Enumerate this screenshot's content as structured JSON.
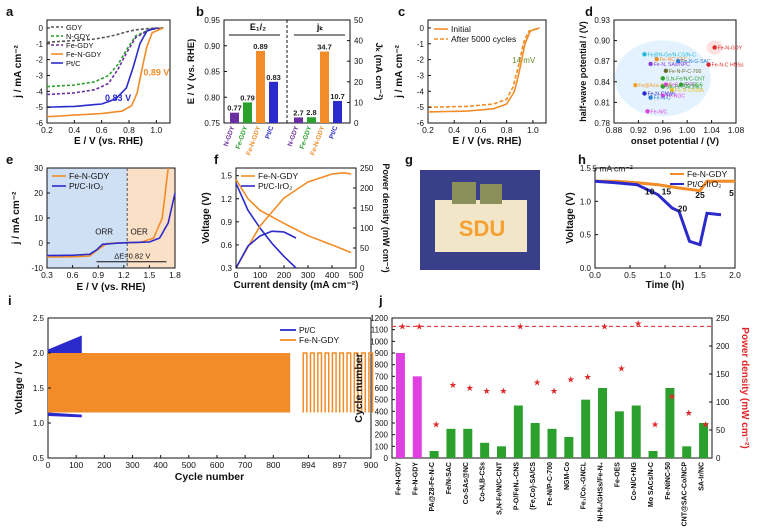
{
  "colors": {
    "gdy": "#555555",
    "ngdy": "#2ca02c",
    "fegdy": "#6a2fa0",
    "fengdy": "#f28c28",
    "ptc": "#2b2bcc",
    "magenta": "#e040e0",
    "red": "#e0282a",
    "blue": "#2b2bcc",
    "orange": "#f28c28"
  },
  "chart_data": [
    {
      "panel": "a",
      "type": "line",
      "xlabel": "E / V (vs. RHE)",
      "ylabel": "j / mA cm⁻²",
      "xlim": [
        0.2,
        1.1
      ],
      "ylim": [
        -6,
        0.5
      ],
      "xticks": [
        "0.2",
        "0.4",
        "0.6",
        "0.8",
        "1.0"
      ],
      "yticks": [
        "0",
        "-1",
        "-2",
        "-3",
        "-4",
        "-5",
        "-6"
      ],
      "legend": [
        "GDY",
        "N-GDY",
        "Fe-GDY",
        "Fe-N-GDY",
        "Pt/C"
      ],
      "annotations": [
        "0.89 V",
        "0.83 V"
      ],
      "series": [
        {
          "name": "GDY",
          "x": [
            0.2,
            0.4,
            0.55,
            0.65,
            0.72,
            0.78,
            0.85,
            0.95,
            1.05
          ],
          "y": [
            -0.9,
            -0.8,
            -0.7,
            -0.55,
            -0.4,
            -0.25,
            -0.12,
            -0.03,
            0
          ]
        },
        {
          "name": "N-GDY",
          "x": [
            0.2,
            0.4,
            0.55,
            0.65,
            0.72,
            0.78,
            0.85,
            0.95,
            1.05
          ],
          "y": [
            -3.7,
            -3.6,
            -3.4,
            -3.0,
            -2.3,
            -1.4,
            -0.5,
            -0.1,
            0
          ]
        },
        {
          "name": "Fe-GDY",
          "x": [
            0.2,
            0.4,
            0.55,
            0.65,
            0.72,
            0.78,
            0.85,
            0.95,
            1.05
          ],
          "y": [
            -4.2,
            -4.1,
            -3.9,
            -3.5,
            -2.6,
            -1.6,
            -0.6,
            -0.1,
            0
          ]
        },
        {
          "name": "Fe-N-GDY",
          "x": [
            0.2,
            0.4,
            0.6,
            0.75,
            0.82,
            0.86,
            0.89,
            0.93,
            0.97,
            1.05
          ],
          "y": [
            -5.6,
            -5.5,
            -5.4,
            -5.25,
            -4.9,
            -4.1,
            -2.8,
            -1.2,
            -0.3,
            0
          ]
        },
        {
          "name": "Pt/C",
          "x": [
            0.2,
            0.4,
            0.6,
            0.7,
            0.78,
            0.83,
            0.88,
            0.93,
            1.0
          ],
          "y": [
            -5.0,
            -4.95,
            -4.8,
            -4.5,
            -3.8,
            -2.5,
            -1.0,
            -0.2,
            0
          ]
        }
      ]
    },
    {
      "panel": "b",
      "type": "bar",
      "ylabel": "E / V (vs. RHE)",
      "y2label": "Jₖ (mA cm⁻²)",
      "ylim": [
        0.75,
        0.95
      ],
      "y2lim": [
        0,
        50
      ],
      "yticks": [
        "0.75",
        "0.80",
        "0.85",
        "0.90",
        "0.95"
      ],
      "y2ticks": [
        "0",
        "10",
        "20",
        "30",
        "40",
        "50"
      ],
      "group_labels": [
        "E₁/₂",
        "jₖ"
      ],
      "categories": [
        "N-GDY",
        "Fe-GDY",
        "Fe-N-GDY",
        "Pt/C"
      ],
      "series": [
        {
          "name": "E₁/₂",
          "values": [
            0.77,
            0.79,
            0.89,
            0.83
          ],
          "labels": [
            "0.77",
            "0.79",
            "0.89",
            "0.83"
          ]
        },
        {
          "name": "jₖ",
          "values": [
            2.7,
            2.8,
            34.7,
            10.7
          ],
          "labels": [
            "2.7",
            "2.8",
            "34.7",
            "10.7"
          ]
        }
      ]
    },
    {
      "panel": "c",
      "type": "line",
      "xlabel": "E / V (vs. RHE)",
      "ylabel": "j / mA cm⁻²",
      "xlim": [
        0.2,
        1.1
      ],
      "ylim": [
        -6,
        0.5
      ],
      "xticks": [
        "0.2",
        "0.4",
        "0.6",
        "0.8",
        "1.0"
      ],
      "yticks": [
        "0",
        "-1",
        "-2",
        "-3",
        "-4",
        "-5",
        "-6"
      ],
      "legend": [
        "Initial",
        "After 5000 cycles"
      ],
      "annotations": [
        "14 mV"
      ],
      "series": [
        {
          "name": "Initial",
          "x": [
            0.2,
            0.5,
            0.7,
            0.8,
            0.86,
            0.9,
            0.94,
            0.98,
            1.05
          ],
          "y": [
            -5.3,
            -5.25,
            -5.1,
            -4.8,
            -4.0,
            -2.6,
            -1.0,
            -0.2,
            0
          ]
        },
        {
          "name": "After 5000 cycles",
          "x": [
            0.2,
            0.5,
            0.7,
            0.8,
            0.85,
            0.89,
            0.93,
            0.97,
            1.05
          ],
          "y": [
            -5.0,
            -4.95,
            -4.8,
            -4.5,
            -3.7,
            -2.4,
            -0.9,
            -0.2,
            0
          ]
        }
      ]
    },
    {
      "panel": "d",
      "type": "scatter",
      "xlabel": "onset potential / (V)",
      "ylabel": "half-wave potential / (V)",
      "xlim": [
        0.88,
        1.08
      ],
      "ylim": [
        0.78,
        0.93
      ],
      "xticks": [
        "0.88",
        "0.92",
        "0.96",
        "1.00",
        "1.04",
        "1.08"
      ],
      "yticks": [
        "0.78",
        "0.81",
        "0.84",
        "0.87",
        "0.90",
        "0.93"
      ],
      "points": [
        {
          "label": "Fe-N-GDY",
          "x": 1.045,
          "y": 0.89,
          "color": "#e0282a"
        },
        {
          "label": "Fe@N-Ge/N-CS/N-C",
          "x": 0.93,
          "y": 0.88,
          "color": "#1fb8d8"
        },
        {
          "label": "Fe-NC SAC",
          "x": 0.95,
          "y": 0.873,
          "color": "#f28c28"
        },
        {
          "label": "Fe-N-G-SAC",
          "x": 0.985,
          "y": 0.87,
          "color": "#2b7fd6"
        },
        {
          "label": "Fe-N-C HNSs",
          "x": 1.035,
          "y": 0.865,
          "color": "#e0282a"
        },
        {
          "label": "Fe-N, SAs/NPC",
          "x": 0.94,
          "y": 0.866,
          "color": "#8a3fd6"
        },
        {
          "label": "Fe-N-P-C-700",
          "x": 0.965,
          "y": 0.856,
          "color": "#6a6a2a"
        },
        {
          "label": "S,N-Fe/N/C-CNT",
          "x": 0.96,
          "y": 0.845,
          "color": "#2ca02c"
        },
        {
          "label": "Fe@Aza-PON",
          "x": 0.915,
          "y": 0.835,
          "color": "#f2a02a"
        },
        {
          "label": "FeSAs/PTF",
          "x": 0.965,
          "y": 0.836,
          "color": "#e040e0"
        },
        {
          "label": "SA-Fe-SAC/NC",
          "x": 0.96,
          "y": 0.833,
          "color": "#2ca02c"
        },
        {
          "label": "Fe-OES",
          "x": 0.99,
          "y": 0.836,
          "color": "#2ca02c"
        },
        {
          "label": "Fe,N-C/NSA",
          "x": 0.975,
          "y": 0.828,
          "color": "#e0c02a"
        },
        {
          "label": "Fe-N-CNWs",
          "x": 0.93,
          "y": 0.823,
          "color": "#2b2bcc"
        },
        {
          "label": "Fe-NGC",
          "x": 0.96,
          "y": 0.82,
          "color": "#e040e0"
        },
        {
          "label": "Fe-N-C",
          "x": 0.94,
          "y": 0.817,
          "color": "#2b7fd6"
        },
        {
          "label": "Fe-N/C",
          "x": 0.935,
          "y": 0.797,
          "color": "#e040e0"
        }
      ]
    },
    {
      "panel": "e",
      "type": "line",
      "xlabel": "E / V (vs. RHE)",
      "ylabel": "j / mA cm⁻²",
      "xlim": [
        0.3,
        1.8
      ],
      "ylim": [
        -10,
        30
      ],
      "xticks": [
        "0.3",
        "0.6",
        "0.9",
        "1.2",
        "1.5",
        "1.8"
      ],
      "yticks": [
        "-10",
        "0",
        "10",
        "20",
        "30"
      ],
      "legend": [
        "Fe-N-GDY",
        "Pt/C-IrO₂"
      ],
      "annotations": [
        "ORR",
        "OER",
        "ΔE=0.82 V"
      ],
      "series": [
        {
          "name": "Fe-N-GDY",
          "x": [
            0.3,
            0.6,
            0.8,
            0.9,
            1.0,
            1.2,
            1.4,
            1.55,
            1.65,
            1.72
          ],
          "y": [
            -5.6,
            -5.5,
            -5.2,
            -2.5,
            -0.2,
            0.1,
            0.3,
            2,
            10,
            30
          ]
        },
        {
          "name": "Pt/C-IrO₂",
          "x": [
            0.3,
            0.6,
            0.8,
            0.88,
            0.95,
            1.2,
            1.5,
            1.62,
            1.72,
            1.8
          ],
          "y": [
            -5.0,
            -4.9,
            -4.5,
            -2.8,
            -0.5,
            0.1,
            0.4,
            2,
            8,
            20
          ]
        }
      ]
    },
    {
      "panel": "f",
      "type": "line",
      "xlabel": "Current density (mA cm⁻²)",
      "ylabel": "Voltage (V)",
      "y2label": "Power density (mW cm⁻²)",
      "xlim": [
        0,
        500
      ],
      "ylim": [
        0.3,
        1.6
      ],
      "y2lim": [
        0,
        250
      ],
      "xticks": [
        "0",
        "100",
        "200",
        "300",
        "400",
        "500"
      ],
      "yticks": [
        "0.3",
        "0.6",
        "0.9",
        "1.2",
        "1.5"
      ],
      "y2ticks": [
        "0",
        "50",
        "100",
        "150",
        "200",
        "250"
      ],
      "legend": [
        "Fe-N-GDY",
        "Pt/C-IrO₂"
      ],
      "series": [
        {
          "name": "Fe-N-GDY voltage",
          "x": [
            0,
            50,
            100,
            200,
            300,
            400,
            480
          ],
          "y": [
            1.45,
            1.2,
            1.05,
            0.88,
            0.72,
            0.6,
            0.5
          ]
        },
        {
          "name": "Pt/C-IrO₂ voltage",
          "x": [
            0,
            50,
            100,
            150,
            200,
            250
          ],
          "y": [
            1.4,
            1.05,
            0.82,
            0.62,
            0.45,
            0.3
          ]
        },
        {
          "name": "Fe-N-GDY power",
          "x": [
            0,
            100,
            200,
            300,
            400,
            450,
            480
          ],
          "y": [
            0,
            105,
            175,
            215,
            235,
            238,
            235
          ]
        },
        {
          "name": "Pt/C-IrO₂ power",
          "x": [
            0,
            50,
            100,
            150,
            200,
            250
          ],
          "y": [
            0,
            55,
            80,
            92,
            90,
            75
          ]
        }
      ]
    },
    {
      "panel": "h",
      "type": "line",
      "xlabel": "Time (h)",
      "ylabel": "Voltage (V)",
      "xlim": [
        0,
        2
      ],
      "ylim": [
        0,
        1.5
      ],
      "xticks": [
        "0.0",
        "0.5",
        "1.0",
        "1.5",
        "2.0"
      ],
      "yticks": [
        "0.0",
        "0.5",
        "1.0",
        "1.5"
      ],
      "legend": [
        "Fe-N-GDY",
        "Pt/C-IrO₂"
      ],
      "annotations": [
        "5 mA cm⁻²",
        "10",
        "15",
        "20",
        "25",
        "5"
      ],
      "series": [
        {
          "name": "Fe-N-GDY",
          "x": [
            0,
            0.3,
            0.6,
            0.9,
            1.2,
            1.5,
            1.6,
            2.0
          ],
          "y": [
            1.3,
            1.3,
            1.28,
            1.25,
            1.2,
            1.16,
            1.3,
            1.3
          ]
        },
        {
          "name": "Pt/C-IrO₂",
          "x": [
            0,
            0.3,
            0.6,
            0.9,
            1.1,
            1.2,
            1.35,
            1.5,
            1.6,
            1.8
          ],
          "y": [
            1.3,
            1.28,
            1.25,
            1.1,
            0.9,
            0.85,
            0.4,
            0.35,
            0.82,
            0.8
          ]
        }
      ]
    },
    {
      "panel": "i",
      "type": "line",
      "xlabel": "Cycle number",
      "ylabel": "Voltage / V",
      "ylim": [
        0.5,
        2.5
      ],
      "yticks": [
        "0.5",
        "1.0",
        "1.5",
        "2.0",
        "2.5"
      ],
      "xticks": [
        "0",
        "100",
        "200",
        "300",
        "400",
        "500",
        "600",
        "700",
        "800",
        "894",
        "897",
        "900"
      ],
      "legend": [
        "Pt/C",
        "Fe-N-GDY"
      ],
      "series": [
        {
          "name": "Pt/C",
          "x_range": [
            0,
            120
          ],
          "charge_v": [
            2.0,
            2.25
          ],
          "discharge_v": [
            1.15,
            1.1
          ]
        },
        {
          "name": "Fe-N-GDY",
          "x_range": [
            0,
            860
          ],
          "charge_v": [
            2.0,
            2.0
          ],
          "discharge_v": [
            1.15,
            1.15
          ]
        }
      ]
    },
    {
      "panel": "j",
      "type": "bar",
      "ylabel": "Cycle number",
      "y2label": "Power density (mW cm⁻²)",
      "ylim": [
        0,
        1200
      ],
      "y2lim": [
        0,
        250
      ],
      "yticks": [
        "0",
        "100",
        "200",
        "300",
        "400",
        "500",
        "600",
        "700",
        "800",
        "900",
        "1000",
        "1100",
        "1200"
      ],
      "y2ticks": [
        "0",
        "50",
        "100",
        "150",
        "200",
        "250"
      ],
      "categories": [
        "Fe-N-GDY",
        "Fe-N-GDY",
        "PA@Z8-Fe-N-C",
        "Fe/N-SAC",
        "Co-SAs@NC",
        "Co-N,B-CSs",
        "S,N-Fe/N/C-CNT",
        "P-O/FeN₄-CNS",
        "(Fe,Co)-SA/CS",
        "Fe-N/P-C-700",
        "NGM-Co",
        "Fe₁/Co₁-GNCL",
        "Ni-N₄/GHSs/Fe-N₄",
        "Fe-OES",
        "Co-N/C+NG",
        "Mo SACs/N-C",
        "Fe-NiNC-50",
        "CNT@SAC-Co/NCP",
        "SA-Ir/NC"
      ],
      "series": [
        {
          "name": "Cycle number",
          "values": [
            900,
            700,
            60,
            250,
            250,
            130,
            100,
            450,
            300,
            250,
            180,
            500,
            600,
            400,
            450,
            60,
            600,
            100,
            300
          ]
        },
        {
          "name": "Power density",
          "values": [
            235,
            235,
            60,
            130,
            125,
            120,
            120,
            235,
            135,
            120,
            140,
            145,
            235,
            160,
            240,
            60,
            110,
            80,
            60
          ]
        }
      ]
    }
  ],
  "panel_letters": [
    "a",
    "b",
    "c",
    "d",
    "e",
    "f",
    "g",
    "h",
    "i",
    "j"
  ],
  "photo_text": "SDU"
}
